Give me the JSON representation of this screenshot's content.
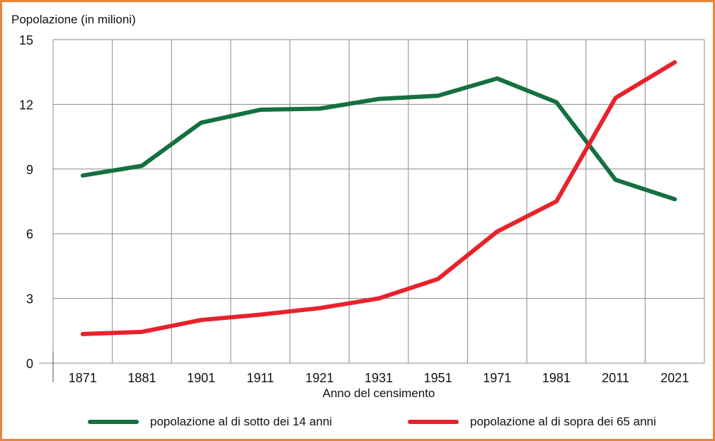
{
  "chart_data": {
    "type": "line",
    "ylabel": "Popolazione (in milioni)",
    "xlabel": "Anno del censimento",
    "categories": [
      "1871",
      "1881",
      "1901",
      "1911",
      "1921",
      "1931",
      "1951",
      "1971",
      "1981",
      "2011",
      "2021"
    ],
    "yticks": [
      "0",
      "3",
      "6",
      "9",
      "12",
      "15"
    ],
    "ylim": [
      0,
      15
    ],
    "grid": true,
    "legend_position": "bottom",
    "series": [
      {
        "name": "popolazione al di sotto dei 14 anni",
        "color": "#157040",
        "values": [
          8.7,
          9.15,
          11.15,
          11.75,
          11.8,
          12.25,
          12.4,
          13.2,
          12.1,
          8.5,
          7.6
        ]
      },
      {
        "name": "popolazione al di sopra dei 65 anni",
        "color": "#e8222b",
        "values": [
          1.35,
          1.45,
          2.0,
          2.25,
          2.55,
          3.0,
          3.9,
          6.1,
          7.5,
          12.3,
          13.95
        ]
      }
    ]
  }
}
